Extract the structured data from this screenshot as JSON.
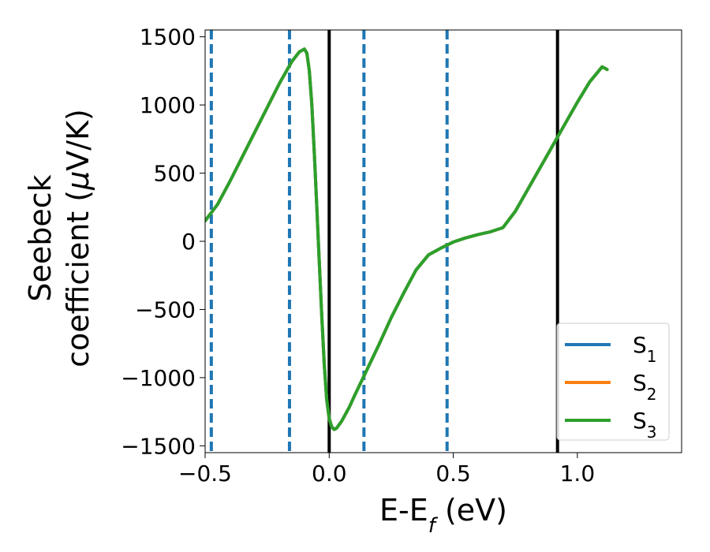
{
  "chart_data": {
    "type": "line",
    "xlabel": "E-E",
    "xlabel_sub": "f",
    "xlabel_unit": " (eV)",
    "ylabel_line1": "Seebeck",
    "ylabel_line2": "coefficient  (",
    "ylabel_mu": "μ",
    "ylabel_unit": "V/K)",
    "xlim": [
      -0.5,
      1.42
    ],
    "ylim": [
      -1550,
      1550
    ],
    "x_ticks": [
      -0.5,
      0.0,
      0.5,
      1.0
    ],
    "x_tick_labels": [
      "−0.5",
      "0.0",
      "0.5",
      "1.0"
    ],
    "y_ticks": [
      -1500,
      -1000,
      -500,
      0,
      500,
      1000,
      1500
    ],
    "y_tick_labels": [
      "−1500",
      "−1000",
      "−500",
      "0",
      "500",
      "1000",
      "1500"
    ],
    "legend_position": "lower-right",
    "series": [
      {
        "name": "S",
        "sub": "1",
        "color": "#1f77b4",
        "x": [
          -0.5,
          -0.45,
          -0.4,
          -0.35,
          -0.3,
          -0.25,
          -0.2,
          -0.15,
          -0.12,
          -0.1,
          -0.09,
          -0.08,
          -0.07,
          -0.06,
          -0.05,
          -0.04,
          -0.03,
          -0.02,
          -0.01,
          0.0,
          0.01,
          0.02,
          0.03,
          0.05,
          0.08,
          0.1,
          0.15,
          0.2,
          0.25,
          0.3,
          0.35,
          0.4,
          0.45,
          0.5,
          0.55,
          0.6,
          0.65,
          0.7,
          0.75,
          0.8,
          0.85,
          0.9,
          0.95,
          1.0,
          1.05,
          1.1,
          1.12
        ],
        "values": [
          150,
          270,
          440,
          620,
          800,
          980,
          1160,
          1320,
          1390,
          1410,
          1380,
          1250,
          1000,
          650,
          250,
          -150,
          -550,
          -900,
          -1160,
          -1300,
          -1360,
          -1380,
          -1370,
          -1320,
          -1220,
          -1140,
          -950,
          -760,
          -560,
          -380,
          -210,
          -100,
          -50,
          -5,
          25,
          50,
          70,
          100,
          220,
          380,
          540,
          700,
          860,
          1020,
          1170,
          1280,
          1260
        ]
      },
      {
        "name": "S",
        "sub": "2",
        "color": "#ff7f0e",
        "x": [
          -0.5,
          -0.45,
          -0.4,
          -0.35,
          -0.3,
          -0.25,
          -0.2,
          -0.15,
          -0.12,
          -0.1,
          -0.09,
          -0.08,
          -0.07,
          -0.06,
          -0.05,
          -0.04,
          -0.03,
          -0.02,
          -0.01,
          0.0,
          0.01,
          0.02,
          0.03,
          0.05,
          0.08,
          0.1,
          0.15,
          0.2,
          0.25,
          0.3,
          0.35,
          0.4,
          0.45,
          0.5,
          0.55,
          0.6,
          0.65,
          0.7,
          0.75,
          0.8,
          0.85,
          0.9,
          0.95,
          1.0,
          1.05,
          1.1,
          1.12
        ],
        "values": [
          150,
          270,
          440,
          620,
          800,
          980,
          1160,
          1320,
          1390,
          1410,
          1380,
          1250,
          1000,
          650,
          250,
          -150,
          -550,
          -900,
          -1160,
          -1300,
          -1360,
          -1380,
          -1370,
          -1320,
          -1220,
          -1140,
          -950,
          -760,
          -560,
          -380,
          -210,
          -100,
          -50,
          -5,
          25,
          50,
          70,
          100,
          220,
          380,
          540,
          700,
          860,
          1020,
          1170,
          1280,
          1260
        ]
      },
      {
        "name": "S",
        "sub": "3",
        "color": "#2ca02c",
        "x": [
          -0.5,
          -0.45,
          -0.4,
          -0.35,
          -0.3,
          -0.25,
          -0.2,
          -0.15,
          -0.12,
          -0.1,
          -0.09,
          -0.08,
          -0.07,
          -0.06,
          -0.05,
          -0.04,
          -0.03,
          -0.02,
          -0.01,
          0.0,
          0.01,
          0.02,
          0.03,
          0.05,
          0.08,
          0.1,
          0.15,
          0.2,
          0.25,
          0.3,
          0.35,
          0.4,
          0.45,
          0.5,
          0.55,
          0.6,
          0.65,
          0.7,
          0.75,
          0.8,
          0.85,
          0.9,
          0.95,
          1.0,
          1.05,
          1.1,
          1.12
        ],
        "values": [
          150,
          270,
          440,
          620,
          800,
          980,
          1160,
          1320,
          1390,
          1410,
          1380,
          1250,
          1000,
          650,
          250,
          -150,
          -550,
          -900,
          -1160,
          -1300,
          -1360,
          -1380,
          -1370,
          -1320,
          -1220,
          -1140,
          -950,
          -760,
          -560,
          -380,
          -210,
          -100,
          -50,
          -5,
          25,
          50,
          70,
          100,
          220,
          380,
          540,
          700,
          860,
          1020,
          1170,
          1280,
          1260
        ]
      }
    ],
    "vertical_lines": [
      {
        "x": -0.475,
        "style": "dashed",
        "color": "#1f77b4"
      },
      {
        "x": -0.16,
        "style": "dashed",
        "color": "#1f77b4"
      },
      {
        "x": 0.0,
        "style": "solid",
        "color": "#000000"
      },
      {
        "x": 0.14,
        "style": "dashed",
        "color": "#1f77b4"
      },
      {
        "x": 0.475,
        "style": "dashed",
        "color": "#1f77b4"
      },
      {
        "x": 0.92,
        "style": "solid",
        "color": "#000000"
      }
    ]
  }
}
